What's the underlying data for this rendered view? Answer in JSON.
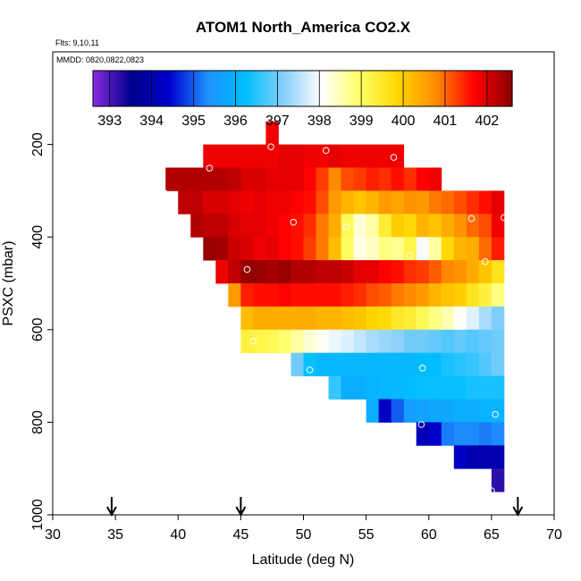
{
  "chart_data": {
    "type": "heatmap",
    "title": "ATOM1 North_America CO2.X",
    "flights_note": "Flts: 9,10,11",
    "dates_note": "MMDD: 0820,0822,0823",
    "xlabel": "Latitude (deg N)",
    "ylabel": "PSXC (mbar)",
    "xlim": [
      30,
      70
    ],
    "ylim": [
      1000,
      0
    ],
    "xticks": [
      30,
      35,
      40,
      45,
      50,
      55,
      60,
      65,
      70
    ],
    "yticks": [
      200,
      400,
      600,
      800,
      1000
    ],
    "colorbar": {
      "range": [
        392.6,
        402.6
      ],
      "ticks": [
        393,
        394,
        395,
        396,
        397,
        398,
        399,
        400,
        401,
        402
      ],
      "colors": [
        "#8A2BE2",
        "#00008B",
        "#0000CD",
        "#1E90FF",
        "#00BFFF",
        "#87CEFA",
        "#FFFFFF",
        "#FFFF66",
        "#FFD700",
        "#FF8C00",
        "#FF0000",
        "#8B0000"
      ]
    },
    "cell_width_deg": 1,
    "cell_height_mbar": 50,
    "rows": [
      {
        "p": 175,
        "x0": 47,
        "values": [
          401.8
        ]
      },
      {
        "p": 225,
        "x0": 42,
        "values": [
          401.8,
          401.8,
          401.8,
          401.8,
          401.8,
          401.8,
          401.9,
          401.9,
          401.8,
          401.8,
          401.9,
          401.8,
          401.8,
          401.8,
          401.8,
          401.8
        ]
      },
      {
        "p": 275,
        "x0": 39,
        "values": [
          402.3,
          402.3,
          402.3,
          402.3,
          402.3,
          402.2,
          402.0,
          402.0,
          401.9,
          401.9,
          401.9,
          401.7,
          401.3,
          400.8,
          401.2,
          401.3,
          401.5,
          401.4,
          401.6,
          401.4,
          401.7,
          401.8
        ]
      },
      {
        "p": 325,
        "x0": 40,
        "values": [
          402.2,
          402.2,
          402.0,
          402.0,
          401.9,
          401.8,
          401.9,
          401.8,
          401.8,
          401.7,
          401.6,
          401.2,
          400.6,
          400.3,
          400.1,
          400.3,
          400.6,
          400.5,
          400.7,
          400.6,
          400.9,
          401.0,
          401.2,
          401.4,
          401.6,
          401.9
        ]
      },
      {
        "p": 375,
        "x0": 41,
        "values": [
          402.3,
          402.2,
          402.2,
          402.0,
          401.9,
          401.9,
          401.8,
          401.7,
          401.6,
          401.4,
          400.9,
          400.4,
          399.1,
          398.3,
          398.6,
          399.4,
          400.0,
          399.8,
          400.3,
          400.1,
          400.4,
          400.7,
          401.0,
          401.2,
          401.8
        ]
      },
      {
        "p": 425,
        "x0": 42,
        "values": [
          402.5,
          402.4,
          402.1,
          402.0,
          401.8,
          401.9,
          401.7,
          401.6,
          401.3,
          400.9,
          400.2,
          399.0,
          398.2,
          398.4,
          398.8,
          398.7,
          399.2,
          398.0,
          398.6,
          399.8,
          400.3,
          400.4,
          401.0,
          401.5
        ]
      },
      {
        "p": 475,
        "x0": 43,
        "values": [
          401.8,
          402.2,
          402.5,
          402.5,
          402.4,
          402.5,
          402.3,
          402.3,
          402.2,
          402.2,
          402.1,
          401.9,
          401.9,
          401.7,
          401.6,
          401.4,
          401.3,
          401.1,
          400.8,
          400.7,
          400.4,
          400.1,
          399.6
        ]
      },
      {
        "p": 525,
        "x0": 44,
        "values": [
          400.6,
          401.5,
          401.6,
          401.6,
          401.7,
          401.6,
          401.6,
          401.6,
          401.6,
          401.5,
          401.4,
          401.2,
          401.1,
          400.9,
          400.8,
          400.6,
          400.3,
          400.1,
          400.0,
          399.6,
          399.3,
          398.8
        ]
      },
      {
        "p": 575,
        "x0": 45,
        "values": [
          400.2,
          400.4,
          400.4,
          400.4,
          400.4,
          400.4,
          400.3,
          400.3,
          400.2,
          400.1,
          399.9,
          399.8,
          399.5,
          399.4,
          399.1,
          398.8,
          398.5,
          398.1,
          397.8,
          397.4,
          397.1
        ]
      },
      {
        "p": 625,
        "x0": 45,
        "values": [
          399.3,
          399.2,
          399.1,
          398.9,
          398.6,
          398.3,
          398.1,
          397.9,
          397.8,
          397.6,
          397.4,
          397.3,
          397.2,
          397.0,
          397.0,
          396.9,
          396.8,
          396.9,
          396.8,
          396.9,
          397.0
        ]
      },
      {
        "p": 675,
        "x0": 49,
        "values": [
          397.0,
          396.3,
          396.1,
          396.1,
          396.1,
          396.1,
          396.1,
          396.1,
          396.1,
          396.1,
          396.2,
          396.2,
          396.4,
          396.5,
          396.6,
          396.8,
          397.0
        ]
      },
      {
        "p": 725,
        "x0": 52,
        "values": [
          396.6,
          395.9,
          395.9,
          396.0,
          396.1,
          396.1,
          396.2,
          396.3,
          396.3,
          396.3,
          396.3,
          396.4,
          396.4,
          396.4
        ]
      },
      {
        "p": 775,
        "x0": 55,
        "values": [
          395.9,
          394.3,
          395.0,
          395.6,
          395.7,
          395.8,
          395.8,
          395.9,
          395.9,
          396.0,
          396.0
        ]
      },
      {
        "p": 825,
        "x0": 59,
        "values": [
          394.1,
          394.4,
          395.2,
          395.3,
          395.3,
          395.2,
          395.3
        ]
      },
      {
        "p": 875,
        "x0": 62,
        "values": [
          394.3,
          394.0,
          394.0,
          394.0
        ]
      },
      {
        "p": 925,
        "x0": 65,
        "values": [
          393.2
        ]
      }
    ],
    "sample_points": [
      {
        "lat": 47.4,
        "p": 205
      },
      {
        "lat": 51.8,
        "p": 213
      },
      {
        "lat": 57.2,
        "p": 228
      },
      {
        "lat": 42.5,
        "p": 251
      },
      {
        "lat": 38.9,
        "p": 305
      },
      {
        "lat": 49.2,
        "p": 368
      },
      {
        "lat": 53.4,
        "p": 378
      },
      {
        "lat": 63.4,
        "p": 360
      },
      {
        "lat": 66.0,
        "p": 358
      },
      {
        "lat": 58.5,
        "p": 440
      },
      {
        "lat": 64.5,
        "p": 453
      },
      {
        "lat": 45.5,
        "p": 470
      },
      {
        "lat": 46.0,
        "p": 625
      },
      {
        "lat": 50.5,
        "p": 687
      },
      {
        "lat": 59.5,
        "p": 683
      },
      {
        "lat": 65.3,
        "p": 783
      },
      {
        "lat": 59.4,
        "p": 805
      },
      {
        "lat": 65.0,
        "p": 948
      }
    ],
    "arrows_lat": [
      34.7,
      45.0,
      67.1
    ]
  }
}
